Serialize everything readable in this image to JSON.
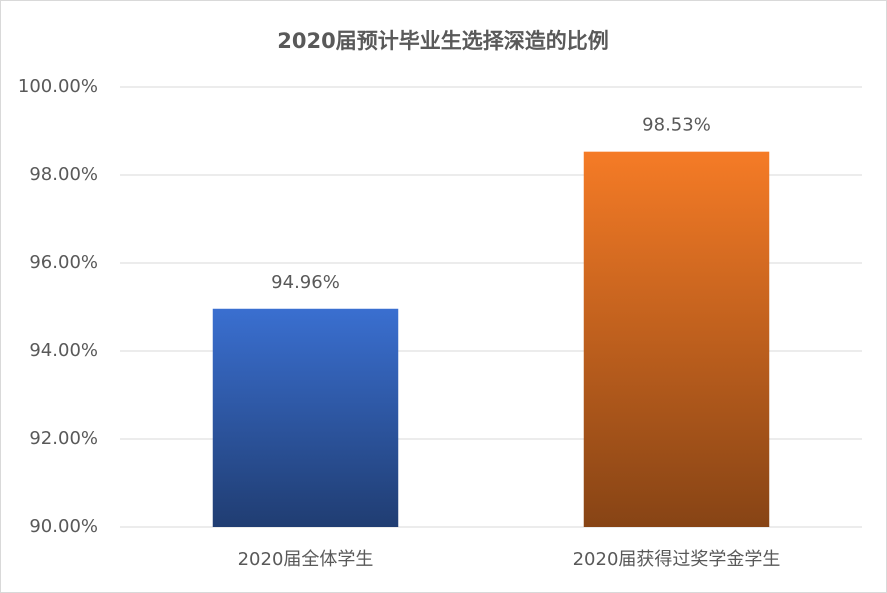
{
  "chart_data": {
    "type": "bar",
    "title": "2020届预计毕业生选择深造的比例",
    "categories": [
      "2020届全体学生",
      "2020届获得过奖学金学生"
    ],
    "values": [
      94.96,
      98.53
    ],
    "value_labels": [
      "94.96%",
      "98.53%"
    ],
    "colors": [
      "#3a6fd0",
      "#f57b26"
    ],
    "ylim": [
      90,
      100
    ],
    "yticks": [
      {
        "value": 90,
        "label": "90.00%"
      },
      {
        "value": 92,
        "label": "92.00%"
      },
      {
        "value": 94,
        "label": "94.00%"
      },
      {
        "value": 96,
        "label": "96.00%"
      },
      {
        "value": 98,
        "label": "98.00%"
      },
      {
        "value": 100,
        "label": "100.00%"
      }
    ],
    "grid": true
  }
}
